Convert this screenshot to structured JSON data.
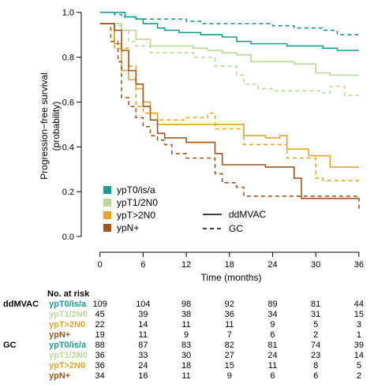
{
  "chart_data": {
    "type": "line",
    "xlabel": "Time (months)",
    "ylabel_lines": [
      "Progression−free survival",
      "(probability)"
    ],
    "xlim": [
      -1.5,
      37
    ],
    "ylim": [
      0,
      1.02
    ],
    "x_ticks": [
      0,
      6,
      12,
      18,
      24,
      30,
      36
    ],
    "x_tick_labels": [
      "0",
      "6",
      "12",
      "18",
      "24",
      "30",
      "36"
    ],
    "y_ticks": [
      0.0,
      0.2,
      0.4,
      0.6,
      0.8,
      1.0
    ],
    "y_tick_labels": [
      "0.0",
      "0.2",
      "0.4",
      "0.6",
      "0.8",
      "1.0"
    ],
    "grid": false,
    "legend_placement": "bottom-left",
    "legend_groups": [
      {
        "label": "ypT0/is/a",
        "color": "#1a9c8f"
      },
      {
        "label": "ypT1/2N0",
        "color": "#b8d99a"
      },
      {
        "label": "ypT>2N0",
        "color": "#e5a526"
      },
      {
        "label": "ypN+",
        "color": "#a0561a"
      }
    ],
    "legend_arms": [
      {
        "label": "ddMVAC",
        "dash": "solid"
      },
      {
        "label": "GC",
        "dash": "dashed"
      }
    ],
    "series": [
      {
        "group": "ypT0/is/a",
        "arm": "ddMVAC",
        "color": "#1a9c8f",
        "dash": "solid",
        "x": [
          0,
          3.5,
          5,
          6,
          8,
          9,
          11,
          14,
          17,
          19,
          21,
          24,
          26,
          31,
          33,
          36
        ],
        "y": [
          1.0,
          0.98,
          0.97,
          0.95,
          0.93,
          0.92,
          0.91,
          0.9,
          0.89,
          0.87,
          0.86,
          0.86,
          0.85,
          0.84,
          0.83,
          0.83
        ]
      },
      {
        "group": "ypT0/is/a",
        "arm": "GC",
        "color": "#1a9c8f",
        "dash": "dashed",
        "x": [
          0,
          2,
          3,
          5,
          12,
          14,
          24,
          27,
          30,
          31,
          33,
          36
        ],
        "y": [
          1.0,
          0.99,
          0.98,
          0.97,
          0.96,
          0.95,
          0.94,
          0.93,
          0.93,
          0.92,
          0.9,
          0.9
        ]
      },
      {
        "group": "ypT1/2N0",
        "arm": "ddMVAC",
        "color": "#b8d99a",
        "dash": "solid",
        "x": [
          0,
          3,
          5,
          7,
          13,
          15,
          17,
          19,
          21,
          24,
          27,
          30,
          32,
          36
        ],
        "y": [
          0.95,
          0.92,
          0.88,
          0.85,
          0.84,
          0.83,
          0.82,
          0.81,
          0.78,
          0.78,
          0.77,
          0.73,
          0.72,
          0.72
        ]
      },
      {
        "group": "ypT1/2N0",
        "arm": "GC",
        "color": "#b8d99a",
        "dash": "dashed",
        "x": [
          0,
          2,
          3,
          4,
          5,
          7,
          13,
          16,
          19,
          20,
          22,
          24,
          31,
          32,
          34,
          36
        ],
        "y": [
          0.95,
          0.94,
          0.92,
          0.87,
          0.85,
          0.82,
          0.8,
          0.76,
          0.72,
          0.68,
          0.66,
          0.65,
          0.64,
          0.67,
          0.63,
          0.63
        ]
      },
      {
        "group": "ypT>2N0",
        "arm": "ddMVAC",
        "color": "#e5a526",
        "dash": "solid",
        "x": [
          0,
          2,
          3,
          4,
          5,
          6,
          7,
          8,
          12,
          18,
          20,
          23,
          25,
          26,
          29,
          32,
          36
        ],
        "y": [
          0.95,
          0.86,
          0.74,
          0.7,
          0.66,
          0.6,
          0.55,
          0.5,
          0.5,
          0.5,
          0.45,
          0.44,
          0.45,
          0.39,
          0.36,
          0.31,
          0.31
        ]
      },
      {
        "group": "ypT>2N0",
        "arm": "GC",
        "color": "#e5a526",
        "dash": "dashed",
        "x": [
          0,
          2,
          4,
          5,
          6,
          8,
          12,
          15,
          16,
          20,
          23,
          26,
          30,
          31,
          36
        ],
        "y": [
          0.95,
          0.84,
          0.76,
          0.58,
          0.55,
          0.52,
          0.53,
          0.55,
          0.48,
          0.41,
          0.41,
          0.35,
          0.26,
          0.25,
          0.25
        ]
      },
      {
        "group": "ypN+",
        "arm": "ddMVAC",
        "color": "#a0561a",
        "dash": "solid",
        "x": [
          0,
          2,
          3,
          4,
          5,
          6,
          7,
          8,
          9,
          12,
          15,
          16,
          17,
          19,
          21,
          23,
          27,
          28,
          30,
          36
        ],
        "y": [
          0.95,
          0.92,
          0.83,
          0.74,
          0.68,
          0.58,
          0.52,
          0.46,
          0.44,
          0.42,
          0.42,
          0.37,
          0.32,
          0.32,
          0.32,
          0.31,
          0.26,
          0.17,
          0.17,
          0.17
        ]
      },
      {
        "group": "ypN+",
        "arm": "GC",
        "color": "#a0561a",
        "dash": "dashed",
        "x": [
          0,
          1.5,
          2.5,
          3,
          4,
          5,
          6,
          7,
          8,
          9,
          10,
          12,
          15,
          16,
          17,
          19,
          20,
          28,
          36
        ],
        "y": [
          0.95,
          0.87,
          0.78,
          0.62,
          0.58,
          0.53,
          0.49,
          0.45,
          0.43,
          0.41,
          0.37,
          0.35,
          0.35,
          0.28,
          0.24,
          0.22,
          0.18,
          0.18,
          0.12
        ]
      }
    ]
  },
  "risk_table": {
    "title": "No. at risk",
    "columns": [
      "0",
      "6",
      "12",
      "18",
      "24",
      "30",
      "36"
    ],
    "arms": [
      {
        "arm": "ddMVAC",
        "rows": [
          {
            "label": "ypT0/is/a",
            "color": "#1a9c8f",
            "values": [
              "109",
              "104",
              "98",
              "92",
              "89",
              "81",
              "44"
            ]
          },
          {
            "label": "ypT1/2N0",
            "color": "#b8d99a",
            "values": [
              "45",
              "39",
              "38",
              "36",
              "34",
              "31",
              "15"
            ]
          },
          {
            "label": "ypT>2N0",
            "color": "#e5a526",
            "values": [
              "22",
              "14",
              "11",
              "11",
              "9",
              "5",
              "3"
            ]
          },
          {
            "label": "ypN+",
            "color": "#a0561a",
            "values": [
              "19",
              "11",
              "9",
              "7",
              "6",
              "2",
              "1"
            ]
          }
        ]
      },
      {
        "arm": "GC",
        "rows": [
          {
            "label": "ypT0/is/a",
            "color": "#1a9c8f",
            "values": [
              "88",
              "87",
              "83",
              "82",
              "81",
              "74",
              "39"
            ]
          },
          {
            "label": "ypT1/2N0",
            "color": "#b8d99a",
            "values": [
              "36",
              "33",
              "30",
              "27",
              "24",
              "23",
              "14"
            ]
          },
          {
            "label": "ypT>2N0",
            "color": "#e5a526",
            "values": [
              "36",
              "24",
              "18",
              "15",
              "11",
              "8",
              "5"
            ]
          },
          {
            "label": "ypN+",
            "color": "#a0561a",
            "values": [
              "34",
              "16",
              "11",
              "9",
              "6",
              "6",
              "2"
            ]
          }
        ]
      }
    ]
  }
}
